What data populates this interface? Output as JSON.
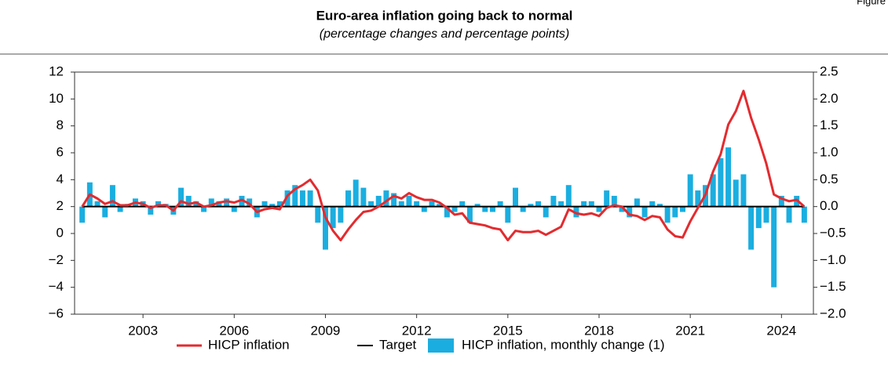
{
  "corner_label": "Figure",
  "chart_data": {
    "type": "line",
    "title": "Euro-area inflation going back to normal",
    "subtitle": "(percentage changes and percentage points)",
    "xlim": [
      2000.75,
      2025.05
    ],
    "xticks": [
      2003,
      2006,
      2009,
      2012,
      2015,
      2018,
      2021,
      2024
    ],
    "ylim": [
      -6,
      12
    ],
    "yticks": [
      12,
      10,
      8,
      6,
      4,
      2,
      0,
      {
        "value": -2,
        "label": "−2"
      },
      {
        "value": -4,
        "label": "−4"
      },
      {
        "value": -6,
        "label": "−6"
      }
    ],
    "y2lim": [
      -2,
      2.5
    ],
    "y2ticks": [
      2.5,
      {
        "value": 2,
        "label": "2.0"
      },
      1.5,
      {
        "value": 1,
        "label": "1.0"
      },
      0.5,
      {
        "value": 0,
        "label": "0.0"
      },
      {
        "value": -0.5,
        "label": "−0.5"
      },
      {
        "value": -1,
        "label": "−1.0"
      },
      {
        "value": -1.5,
        "label": "−1.5"
      },
      {
        "value": -2,
        "label": "−2.0"
      }
    ],
    "x": [
      2001,
      2001.25,
      2001.5,
      2001.75,
      2002,
      2002.25,
      2002.5,
      2002.75,
      2003,
      2003.25,
      2003.5,
      2003.75,
      2004,
      2004.25,
      2004.5,
      2004.75,
      2005,
      2005.25,
      2005.5,
      2005.75,
      2006,
      2006.25,
      2006.5,
      2006.75,
      2007,
      2007.25,
      2007.5,
      2007.75,
      2008,
      2008.25,
      2008.5,
      2008.75,
      2009,
      2009.25,
      2009.5,
      2009.75,
      2010,
      2010.25,
      2010.5,
      2010.75,
      2011,
      2011.25,
      2011.5,
      2011.75,
      2012,
      2012.25,
      2012.5,
      2012.75,
      2013,
      2013.25,
      2013.5,
      2013.75,
      2014,
      2014.25,
      2014.5,
      2014.75,
      2015,
      2015.25,
      2015.5,
      2015.75,
      2016,
      2016.25,
      2016.5,
      2016.75,
      2017,
      2017.25,
      2017.5,
      2017.75,
      2018,
      2018.25,
      2018.5,
      2018.75,
      2019,
      2019.25,
      2019.5,
      2019.75,
      2020,
      2020.25,
      2020.5,
      2020.75,
      2021,
      2021.25,
      2021.5,
      2021.75,
      2022,
      2022.25,
      2022.5,
      2022.75,
      2023,
      2023.25,
      2023.5,
      2023.75,
      2024,
      2024.25,
      2024.5,
      2024.75
    ],
    "target": {
      "name": "Target",
      "value": 2,
      "color": "#000000"
    },
    "series": [
      {
        "name": "HICP inflation",
        "color": "#e32b2f",
        "values": [
          2.0,
          2.9,
          2.6,
          2.2,
          2.4,
          2.1,
          2.1,
          2.3,
          2.2,
          1.9,
          2.1,
          2.1,
          1.7,
          2.4,
          2.2,
          2.3,
          2.0,
          2.1,
          2.3,
          2.4,
          2.3,
          2.5,
          2.2,
          1.6,
          1.8,
          1.9,
          1.8,
          2.8,
          3.3,
          3.6,
          4.0,
          3.2,
          1.2,
          0.2,
          -0.5,
          0.3,
          1.0,
          1.6,
          1.7,
          2.0,
          2.4,
          2.8,
          2.6,
          3.0,
          2.7,
          2.5,
          2.5,
          2.3,
          1.9,
          1.4,
          1.5,
          0.8,
          0.7,
          0.6,
          0.4,
          0.3,
          -0.5,
          0.2,
          0.1,
          0.1,
          0.2,
          -0.1,
          0.2,
          0.5,
          1.8,
          1.5,
          1.4,
          1.5,
          1.3,
          1.9,
          2.1,
          2.0,
          1.4,
          1.3,
          1.0,
          1.3,
          1.2,
          0.3,
          -0.2,
          -0.3,
          0.9,
          1.9,
          2.9,
          4.6,
          5.9,
          8.1,
          9.1,
          10.6,
          8.6,
          7.0,
          5.2,
          2.9,
          2.6,
          2.4,
          2.5,
          2.0
        ]
      },
      {
        "name": "HICP inflation, monthly change (1)",
        "color": "#1aaee0",
        "type": "bar",
        "axis": "y2",
        "values": [
          -0.3,
          0.45,
          0.1,
          -0.2,
          0.4,
          -0.1,
          0.05,
          0.15,
          0.1,
          -0.15,
          0.1,
          0.05,
          -0.15,
          0.35,
          0.2,
          0.1,
          -0.1,
          0.15,
          0.1,
          0.15,
          -0.1,
          0.2,
          0.15,
          -0.2,
          0.1,
          0.05,
          0.1,
          0.3,
          0.4,
          0.3,
          0.3,
          -0.3,
          -0.8,
          -0.4,
          -0.3,
          0.3,
          0.5,
          0.35,
          0.1,
          0.2,
          0.3,
          0.25,
          0.1,
          0.2,
          0.1,
          -0.1,
          0.1,
          0.05,
          -0.2,
          -0.1,
          0.1,
          -0.3,
          0.05,
          -0.1,
          -0.1,
          0.1,
          -0.3,
          0.35,
          -0.1,
          0.05,
          0.1,
          -0.2,
          0.2,
          0.1,
          0.4,
          -0.2,
          0.1,
          0.1,
          -0.1,
          0.3,
          0.2,
          -0.1,
          -0.2,
          0.15,
          -0.2,
          0.1,
          0.05,
          -0.3,
          -0.2,
          -0.1,
          0.6,
          0.3,
          0.4,
          0.6,
          0.9,
          1.1,
          0.5,
          0.6,
          -0.8,
          -0.4,
          -0.3,
          -1.5,
          0.2,
          -0.3,
          0.2,
          -0.3
        ]
      }
    ]
  }
}
